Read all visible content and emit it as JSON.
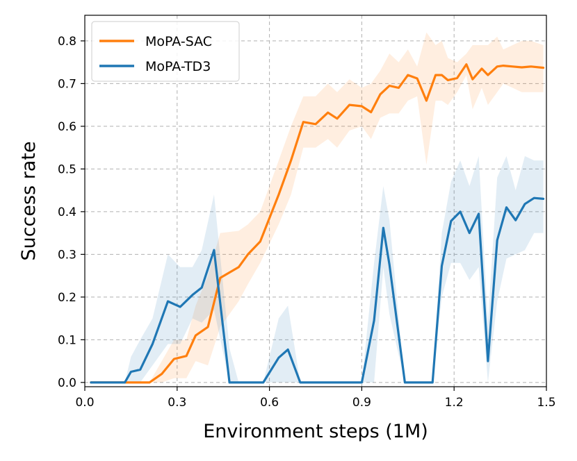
{
  "chart_data": {
    "type": "line",
    "title": "",
    "xlabel": "Environment steps (1M)",
    "ylabel": "Success rate",
    "xlim": [
      0.0,
      1.5
    ],
    "ylim": [
      -0.01,
      0.86
    ],
    "xticks": [
      0.0,
      0.3,
      0.6,
      0.9,
      1.2,
      1.5
    ],
    "xtick_labels": [
      "0.0",
      "0.3",
      "0.6",
      "0.9",
      "1.2",
      "1.5"
    ],
    "yticks": [
      0.0,
      0.1,
      0.2,
      0.3,
      0.4,
      0.5,
      0.6,
      0.7,
      0.8
    ],
    "ytick_labels": [
      "0.0",
      "0.1",
      "0.2",
      "0.3",
      "0.4",
      "0.5",
      "0.6",
      "0.7",
      "0.8"
    ],
    "grid": true,
    "legend_position": "top-left",
    "series": [
      {
        "name": "MoPA-SAC",
        "color": "#ff7f0e",
        "x": [
          0.02,
          0.06,
          0.11,
          0.15,
          0.19,
          0.21,
          0.25,
          0.29,
          0.33,
          0.36,
          0.4,
          0.44,
          0.5,
          0.53,
          0.57,
          0.63,
          0.67,
          0.71,
          0.75,
          0.79,
          0.82,
          0.86,
          0.9,
          0.93,
          0.96,
          0.99,
          1.02,
          1.05,
          1.08,
          1.11,
          1.14,
          1.16,
          1.18,
          1.21,
          1.24,
          1.26,
          1.29,
          1.31,
          1.34,
          1.36,
          1.39,
          1.42,
          1.45,
          1.49
        ],
        "values": [
          0.0,
          0.0,
          0.0,
          0.0,
          0.0,
          0.0,
          0.02,
          0.055,
          0.062,
          0.11,
          0.13,
          0.245,
          0.27,
          0.3,
          0.33,
          0.44,
          0.52,
          0.61,
          0.605,
          0.632,
          0.618,
          0.65,
          0.647,
          0.633,
          0.675,
          0.695,
          0.69,
          0.72,
          0.712,
          0.66,
          0.72,
          0.72,
          0.708,
          0.713,
          0.745,
          0.71,
          0.735,
          0.72,
          0.74,
          0.742,
          0.74,
          0.738,
          0.74,
          0.737
        ],
        "band_upper": [
          0.0,
          0.0,
          0.0,
          0.0,
          0.0,
          0.0,
          0.05,
          0.1,
          0.1,
          0.18,
          0.25,
          0.35,
          0.355,
          0.37,
          0.4,
          0.52,
          0.6,
          0.67,
          0.67,
          0.7,
          0.68,
          0.71,
          0.69,
          0.7,
          0.73,
          0.77,
          0.75,
          0.78,
          0.74,
          0.82,
          0.79,
          0.8,
          0.76,
          0.75,
          0.77,
          0.79,
          0.79,
          0.79,
          0.81,
          0.78,
          0.79,
          0.8,
          0.8,
          0.79
        ],
        "band_lower": [
          0.0,
          0.0,
          0.0,
          0.0,
          0.0,
          0.0,
          0.0,
          0.01,
          0.01,
          0.05,
          0.04,
          0.13,
          0.19,
          0.23,
          0.28,
          0.37,
          0.44,
          0.55,
          0.55,
          0.57,
          0.55,
          0.59,
          0.6,
          0.57,
          0.62,
          0.63,
          0.63,
          0.66,
          0.67,
          0.51,
          0.66,
          0.66,
          0.65,
          0.68,
          0.72,
          0.64,
          0.69,
          0.65,
          0.68,
          0.7,
          0.69,
          0.68,
          0.68,
          0.68
        ]
      },
      {
        "name": "MoPA-TD3",
        "color": "#1f77b4",
        "x": [
          0.02,
          0.06,
          0.1,
          0.13,
          0.15,
          0.18,
          0.22,
          0.27,
          0.31,
          0.35,
          0.38,
          0.42,
          0.47,
          0.5,
          0.58,
          0.63,
          0.66,
          0.7,
          0.75,
          0.82,
          0.9,
          0.94,
          0.97,
          0.99,
          1.04,
          1.08,
          1.13,
          1.16,
          1.19,
          1.22,
          1.25,
          1.28,
          1.31,
          1.34,
          1.37,
          1.4,
          1.43,
          1.46,
          1.49
        ],
        "values": [
          0.0,
          0.0,
          0.0,
          0.0,
          0.025,
          0.03,
          0.09,
          0.19,
          0.177,
          0.205,
          0.222,
          0.31,
          0.0,
          0.0,
          0.0,
          0.058,
          0.077,
          0.0,
          0.0,
          0.0,
          0.0,
          0.145,
          0.362,
          0.276,
          0.0,
          0.0,
          0.0,
          0.273,
          0.378,
          0.4,
          0.35,
          0.395,
          0.05,
          0.333,
          0.41,
          0.38,
          0.418,
          0.432,
          0.43
        ],
        "band_upper": [
          0.0,
          0.0,
          0.0,
          0.0,
          0.06,
          0.1,
          0.15,
          0.3,
          0.27,
          0.27,
          0.31,
          0.44,
          0.08,
          0.0,
          0.0,
          0.15,
          0.18,
          0.0,
          0.0,
          0.0,
          0.0,
          0.28,
          0.46,
          0.38,
          0.0,
          0.0,
          0.0,
          0.35,
          0.47,
          0.52,
          0.46,
          0.53,
          0.14,
          0.48,
          0.53,
          0.45,
          0.53,
          0.52,
          0.52
        ],
        "band_lower": [
          0.0,
          0.0,
          0.0,
          0.0,
          0.0,
          0.0,
          0.04,
          0.09,
          0.09,
          0.15,
          0.14,
          0.17,
          0.0,
          0.0,
          0.0,
          0.0,
          0.0,
          0.0,
          0.0,
          0.0,
          0.0,
          0.0,
          0.27,
          0.16,
          0.0,
          0.0,
          0.0,
          0.2,
          0.28,
          0.28,
          0.24,
          0.27,
          0.0,
          0.19,
          0.29,
          0.3,
          0.31,
          0.35,
          0.35
        ]
      }
    ]
  }
}
